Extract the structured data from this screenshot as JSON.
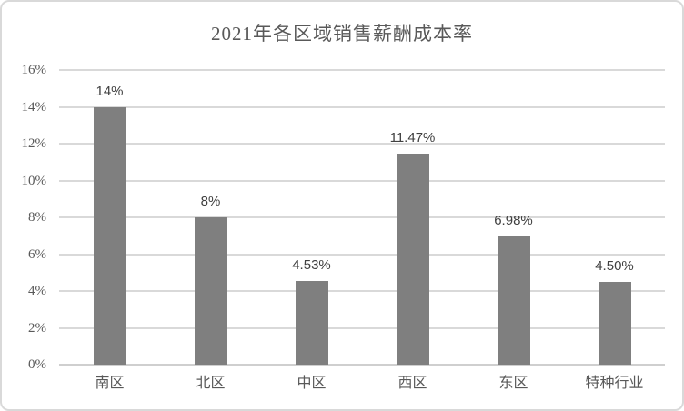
{
  "chart_data": {
    "type": "bar",
    "title": "2021年各区域销售薪酬成本率",
    "categories": [
      "南区",
      "北区",
      "中区",
      "西区",
      "东区",
      "特种行业"
    ],
    "values": [
      14,
      8,
      4.53,
      11.47,
      6.98,
      4.5
    ],
    "data_labels": [
      "14%",
      "8%",
      "4.53%",
      "11.47%",
      "6.98%",
      "4.50%"
    ],
    "xlabel": "",
    "ylabel": "",
    "ylim": [
      0,
      16
    ],
    "ytick_step": 2,
    "ytick_labels": [
      "0%",
      "2%",
      "4%",
      "6%",
      "8%",
      "10%",
      "12%",
      "14%",
      "16%"
    ],
    "grid": true,
    "legend": "none",
    "colors": {
      "bar": "#7f7f7f",
      "gridline": "#d9d9d9",
      "axis_line": "#cfcfcf",
      "tick_text": "#595959",
      "title_text": "#595959",
      "data_label_text": "#404040",
      "background": "#ffffff",
      "border": "#d9d9d9"
    }
  }
}
